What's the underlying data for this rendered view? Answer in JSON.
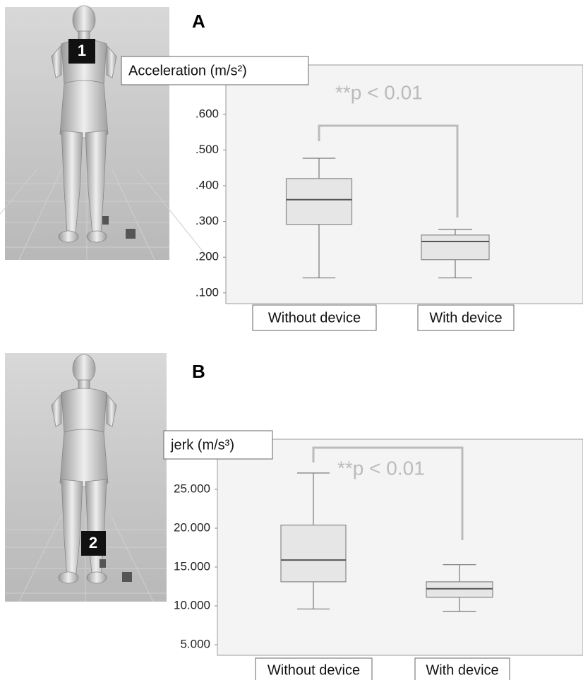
{
  "chart_data": [
    {
      "type": "box",
      "panel_label": "A",
      "ylabel": "Acceleration (m/s²)",
      "annotation": "**p < 0.01",
      "categories": [
        "Without  device",
        "With device"
      ],
      "stats": [
        {
          "min": 0.142,
          "q1": 0.292,
          "median": 0.361,
          "q3": 0.42,
          "max": 0.477
        },
        {
          "min": 0.142,
          "q1": 0.193,
          "median": 0.244,
          "q3": 0.262,
          "max": 0.278
        }
      ],
      "color": "#e6e6e6",
      "ylim": [
        0.07,
        0.738
      ],
      "yticks": [
        {
          "value": 0.1,
          "label": ".100"
        },
        {
          "value": 0.2,
          "label": ".200"
        },
        {
          "value": 0.3,
          "label": ".300"
        },
        {
          "value": 0.4,
          "label": ".400"
        },
        {
          "value": 0.5,
          "label": ".500"
        },
        {
          "value": 0.6,
          "label": ".600"
        }
      ]
    },
    {
      "type": "box",
      "panel_label": "B",
      "ylabel": "jerk (m/s³)",
      "annotation": "**p < 0.01",
      "categories": [
        "Without device",
        "With device"
      ],
      "stats": [
        {
          "min": 9.6,
          "q1": 13.1,
          "median": 15.9,
          "q3": 20.4,
          "max": 27.1
        },
        {
          "min": 9.3,
          "q1": 11.1,
          "median": 12.2,
          "q3": 13.1,
          "max": 15.3
        }
      ],
      "color": "#e6e6e6",
      "ylim": [
        3.64,
        31.45
      ],
      "yticks": [
        {
          "value": 5,
          "label": "5.000"
        },
        {
          "value": 10,
          "label": "10.000"
        },
        {
          "value": 15,
          "label": "15.000"
        },
        {
          "value": 20,
          "label": "20.000"
        },
        {
          "value": 25,
          "label": "25.000"
        }
      ]
    }
  ],
  "figures": [
    {
      "marker": "1"
    },
    {
      "marker": "2"
    }
  ]
}
